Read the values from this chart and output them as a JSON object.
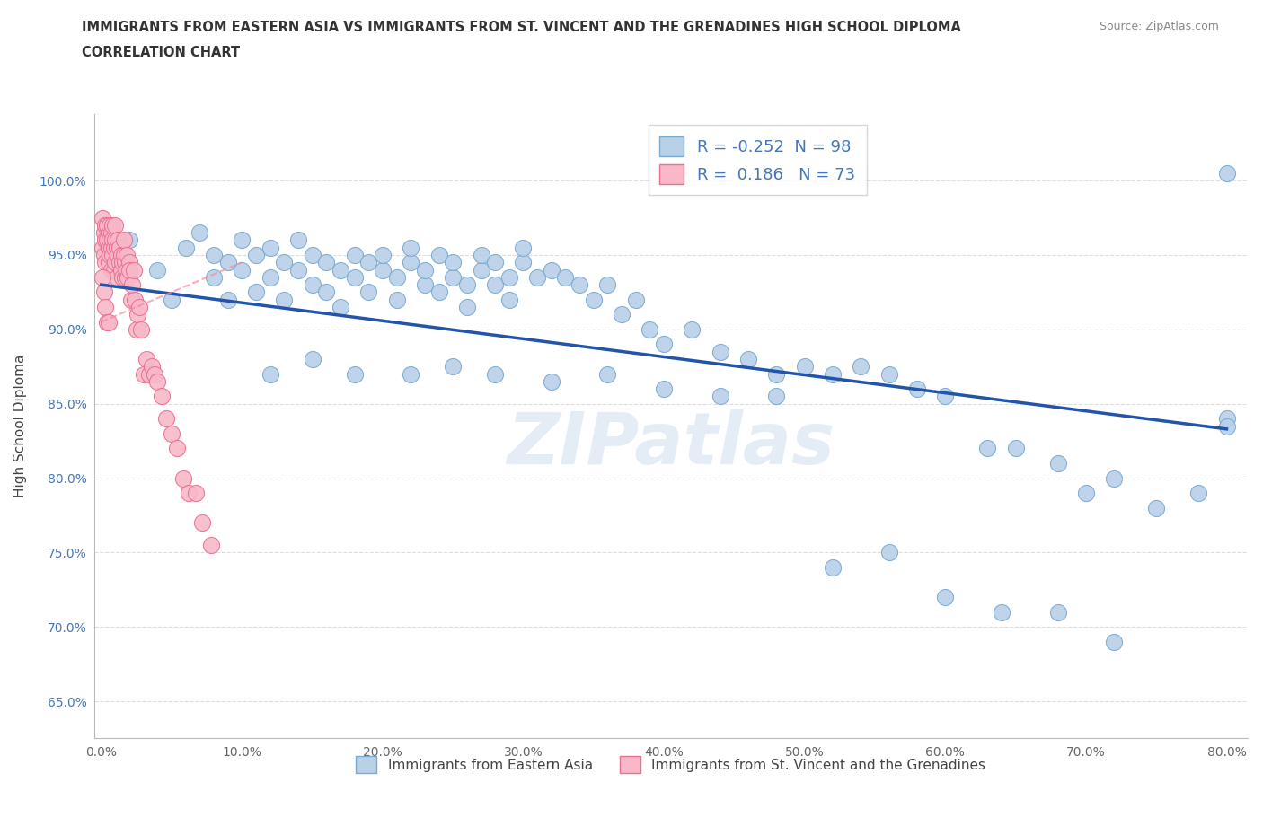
{
  "title_line1": "IMMIGRANTS FROM EASTERN ASIA VS IMMIGRANTS FROM ST. VINCENT AND THE GRENADINES HIGH SCHOOL DIPLOMA",
  "title_line2": "CORRELATION CHART",
  "source_text": "Source: ZipAtlas.com",
  "ylabel": "High School Diploma",
  "xlim": [
    -0.005,
    0.815
  ],
  "ylim": [
    0.625,
    1.045
  ],
  "xticks": [
    0.0,
    0.1,
    0.2,
    0.3,
    0.4,
    0.5,
    0.6,
    0.7,
    0.8
  ],
  "xticklabels": [
    "0.0%",
    "10.0%",
    "20.0%",
    "30.0%",
    "40.0%",
    "50.0%",
    "60.0%",
    "70.0%",
    "80.0%"
  ],
  "yticks": [
    0.65,
    0.7,
    0.75,
    0.8,
    0.85,
    0.9,
    0.95,
    1.0
  ],
  "yticklabels": [
    "65.0%",
    "70.0%",
    "75.0%",
    "80.0%",
    "85.0%",
    "90.0%",
    "95.0%",
    "100.0%"
  ],
  "blue_color": "#b8d0e8",
  "blue_edge_color": "#7aaad0",
  "pink_color": "#f8b8c8",
  "pink_edge_color": "#e87090",
  "trend_blue_color": "#2255aa",
  "trend_pink_color": "#ff8899",
  "R_blue": -0.252,
  "N_blue": 98,
  "R_pink": 0.186,
  "N_pink": 73,
  "legend_label_blue": "Immigrants from Eastern Asia",
  "legend_label_pink": "Immigrants from St. Vincent and the Grenadines",
  "watermark": "ZIPatlas",
  "blue_trend_x0": 0.0,
  "blue_trend_y0": 0.93,
  "blue_trend_x1": 0.8,
  "blue_trend_y1": 0.833,
  "pink_trend_x0": 0.0,
  "pink_trend_y0": 0.905,
  "pink_trend_x1": 0.1,
  "pink_trend_y1": 0.945,
  "blue_scatter_x": [
    0.02,
    0.04,
    0.05,
    0.06,
    0.07,
    0.08,
    0.08,
    0.09,
    0.09,
    0.1,
    0.1,
    0.11,
    0.11,
    0.12,
    0.12,
    0.13,
    0.13,
    0.14,
    0.14,
    0.15,
    0.15,
    0.16,
    0.16,
    0.17,
    0.17,
    0.18,
    0.18,
    0.19,
    0.19,
    0.2,
    0.2,
    0.21,
    0.21,
    0.22,
    0.22,
    0.23,
    0.23,
    0.24,
    0.24,
    0.25,
    0.25,
    0.26,
    0.26,
    0.27,
    0.27,
    0.28,
    0.28,
    0.29,
    0.29,
    0.3,
    0.3,
    0.31,
    0.32,
    0.33,
    0.34,
    0.35,
    0.36,
    0.37,
    0.38,
    0.39,
    0.4,
    0.42,
    0.44,
    0.46,
    0.48,
    0.5,
    0.52,
    0.54,
    0.56,
    0.58,
    0.6,
    0.63,
    0.65,
    0.68,
    0.7,
    0.72,
    0.75,
    0.78,
    0.8,
    0.8,
    0.8,
    0.12,
    0.15,
    0.18,
    0.22,
    0.25,
    0.28,
    0.32,
    0.36,
    0.4,
    0.44,
    0.48,
    0.52,
    0.56,
    0.6,
    0.64,
    0.68,
    0.72
  ],
  "blue_scatter_y": [
    0.96,
    0.94,
    0.92,
    0.955,
    0.965,
    0.935,
    0.95,
    0.945,
    0.92,
    0.94,
    0.96,
    0.925,
    0.95,
    0.935,
    0.955,
    0.945,
    0.92,
    0.94,
    0.96,
    0.93,
    0.95,
    0.945,
    0.925,
    0.94,
    0.915,
    0.95,
    0.935,
    0.945,
    0.925,
    0.94,
    0.95,
    0.935,
    0.92,
    0.945,
    0.955,
    0.93,
    0.94,
    0.95,
    0.925,
    0.935,
    0.945,
    0.93,
    0.915,
    0.94,
    0.95,
    0.93,
    0.945,
    0.92,
    0.935,
    0.945,
    0.955,
    0.935,
    0.94,
    0.935,
    0.93,
    0.92,
    0.93,
    0.91,
    0.92,
    0.9,
    0.89,
    0.9,
    0.885,
    0.88,
    0.87,
    0.875,
    0.87,
    0.875,
    0.87,
    0.86,
    0.855,
    0.82,
    0.82,
    0.81,
    0.79,
    0.8,
    0.78,
    0.79,
    1.005,
    0.84,
    0.835,
    0.87,
    0.88,
    0.87,
    0.87,
    0.875,
    0.87,
    0.865,
    0.87,
    0.86,
    0.855,
    0.855,
    0.74,
    0.75,
    0.72,
    0.71,
    0.71,
    0.69
  ],
  "pink_scatter_x": [
    0.001,
    0.001,
    0.002,
    0.002,
    0.003,
    0.003,
    0.003,
    0.004,
    0.004,
    0.005,
    0.005,
    0.005,
    0.006,
    0.006,
    0.006,
    0.007,
    0.007,
    0.007,
    0.008,
    0.008,
    0.008,
    0.009,
    0.009,
    0.01,
    0.01,
    0.01,
    0.011,
    0.011,
    0.012,
    0.012,
    0.013,
    0.013,
    0.014,
    0.014,
    0.015,
    0.015,
    0.016,
    0.016,
    0.017,
    0.017,
    0.018,
    0.018,
    0.019,
    0.02,
    0.02,
    0.021,
    0.022,
    0.023,
    0.024,
    0.025,
    0.026,
    0.027,
    0.028,
    0.03,
    0.032,
    0.034,
    0.036,
    0.038,
    0.04,
    0.043,
    0.046,
    0.05,
    0.054,
    0.058,
    0.062,
    0.067,
    0.072,
    0.078,
    0.001,
    0.002,
    0.003,
    0.004,
    0.005
  ],
  "pink_scatter_y": [
    0.975,
    0.955,
    0.965,
    0.95,
    0.97,
    0.96,
    0.945,
    0.96,
    0.97,
    0.955,
    0.965,
    0.945,
    0.96,
    0.97,
    0.95,
    0.955,
    0.965,
    0.94,
    0.96,
    0.97,
    0.95,
    0.955,
    0.94,
    0.96,
    0.97,
    0.945,
    0.955,
    0.935,
    0.95,
    0.96,
    0.945,
    0.955,
    0.94,
    0.95,
    0.945,
    0.935,
    0.95,
    0.96,
    0.945,
    0.935,
    0.94,
    0.95,
    0.935,
    0.945,
    0.94,
    0.92,
    0.93,
    0.94,
    0.92,
    0.9,
    0.91,
    0.915,
    0.9,
    0.87,
    0.88,
    0.87,
    0.875,
    0.87,
    0.865,
    0.855,
    0.84,
    0.83,
    0.82,
    0.8,
    0.79,
    0.79,
    0.77,
    0.755,
    0.935,
    0.925,
    0.915,
    0.905,
    0.905
  ]
}
